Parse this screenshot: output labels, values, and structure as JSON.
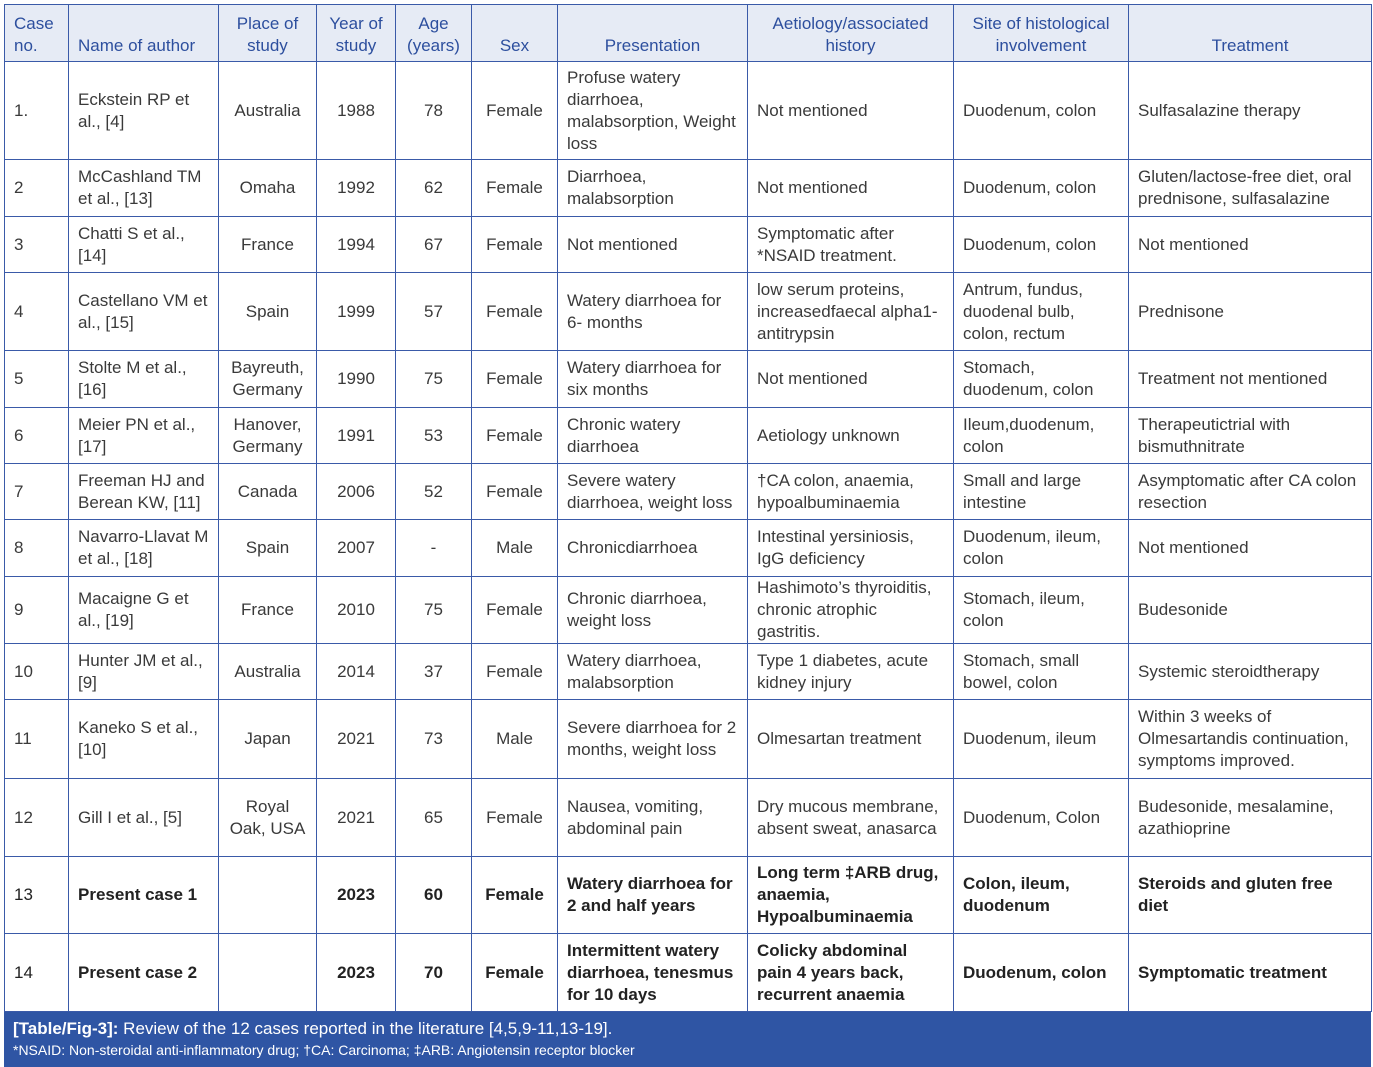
{
  "headers": [
    "Case no.",
    "Name of author",
    "Place of study",
    "Year of study",
    "Age (years)",
    "Sex",
    "Presentation",
    "Aetiology/associated history",
    "Site of histological involvement",
    "Treatment"
  ],
  "rows": [
    [
      "1.",
      "Eckstein RP et al., [4]",
      "Australia",
      "1988",
      "78",
      "Female",
      "Profuse watery diarrhoea, malabsorption, Weight loss",
      "Not mentioned",
      "Duodenum, colon",
      "Sulfasalazine therapy"
    ],
    [
      "2",
      "McCashland TM et al., [13]",
      "Omaha",
      "1992",
      "62",
      "Female",
      "Diarrhoea, malabsorption",
      "Not mentioned",
      "Duodenum, colon",
      "Gluten/lactose-free diet, oral prednisone, sulfasalazine"
    ],
    [
      "3",
      "Chatti S et al., [14]",
      "France",
      "1994",
      "67",
      "Female",
      "Not mentioned",
      "Symptomatic after *NSAID treatment.",
      "Duodenum, colon",
      "Not mentioned"
    ],
    [
      "4",
      "Castellano VM et al., [15]",
      "Spain",
      "1999",
      "57",
      "Female",
      "Watery diarrhoea for 6- months",
      "low serum proteins, increasedfaecal alpha1-antitrypsin",
      "Antrum, fundus, duodenal bulb, colon, rectum",
      "Prednisone"
    ],
    [
      "5",
      "Stolte M et al., [16]",
      "Bayreuth, Germany",
      "1990",
      "75",
      "Female",
      "Watery diarrhoea for six months",
      "Not mentioned",
      "Stomach, duodenum, colon",
      "Treatment not mentioned"
    ],
    [
      "6",
      "Meier PN et al., [17]",
      "Hanover, Germany",
      "1991",
      "53",
      "Female",
      "Chronic watery diarrhoea",
      "Aetiology unknown",
      "Ileum,duodenum, colon",
      "Therapeutictrial with bismuthnitrate"
    ],
    [
      "7",
      "Freeman HJ and Berean KW, [11]",
      "Canada",
      "2006",
      "52",
      "Female",
      "Severe watery diarrhoea, weight loss",
      "†CA colon, anaemia, hypoalbuminaemia",
      "Small and large intestine",
      "Asymptomatic after CA colon resection"
    ],
    [
      "8",
      "Navarro-Llavat M et al., [18]",
      "Spain",
      "2007",
      "-",
      "Male",
      "Chronicdiarrhoea",
      "Intestinal yersiniosis, IgG deficiency",
      "Duodenum, ileum, colon",
      "Not mentioned"
    ],
    [
      "9",
      "Macaigne G et al., [19]",
      "France",
      "2010",
      "75",
      "Female",
      "Chronic diarrhoea, weight loss",
      "Hashimoto’s thyroiditis, chronic atrophic gastritis.",
      "Stomach, ileum, colon",
      "Budesonide"
    ],
    [
      "10",
      "Hunter JM et al., [9]",
      "Australia",
      "2014",
      "37",
      "Female",
      "Watery diarrhoea, malabsorption",
      "Type 1 diabetes, acute kidney injury",
      "Stomach, small bowel, colon",
      "Systemic steroidtherapy"
    ],
    [
      "11",
      "Kaneko S et al., [10]",
      "Japan",
      "2021",
      "73",
      "Male",
      "Severe diarrhoea for 2 months, weight loss",
      "Olmesartan treatment",
      "Duodenum, ileum",
      "Within 3 weeks of Olmesartandis continuation, symptoms improved."
    ],
    [
      "12",
      "Gill I et al., [5]",
      "Royal Oak, USA",
      "2021",
      "65",
      "Female",
      "Nausea, vomiting, abdominal pain",
      "Dry mucous membrane, absent sweat, anasarca",
      "Duodenum, Colon",
      "Budesonide, mesalamine, azathioprine"
    ],
    [
      "13",
      "Present case 1",
      "",
      "2023",
      "60",
      "Female",
      "Watery diarrhoea for 2 and half years",
      "Long term ‡ARB drug, anaemia, Hypoalbuminaemia",
      "Colon, ileum, duodenum",
      "Steroids and gluten free diet"
    ],
    [
      "14",
      "Present case 2",
      "",
      "2023",
      "70",
      "Female",
      "Intermittent watery diarrhoea, tenesmus for 10 days",
      "Colicky abdominal pain 4 years back, recurrent anaemia",
      "Duodenum, colon",
      "Symptomatic treatment"
    ]
  ],
  "caption": {
    "label": "[Table/Fig-3]:",
    "text": " Review of the 12 cases reported in the literature [4,5,9-11,13-19].",
    "note": "*NSAID: Non-steroidal anti-inflammatory drug; †CA: Carcinoma; ‡ARB: Angiotensin receptor blocker"
  }
}
